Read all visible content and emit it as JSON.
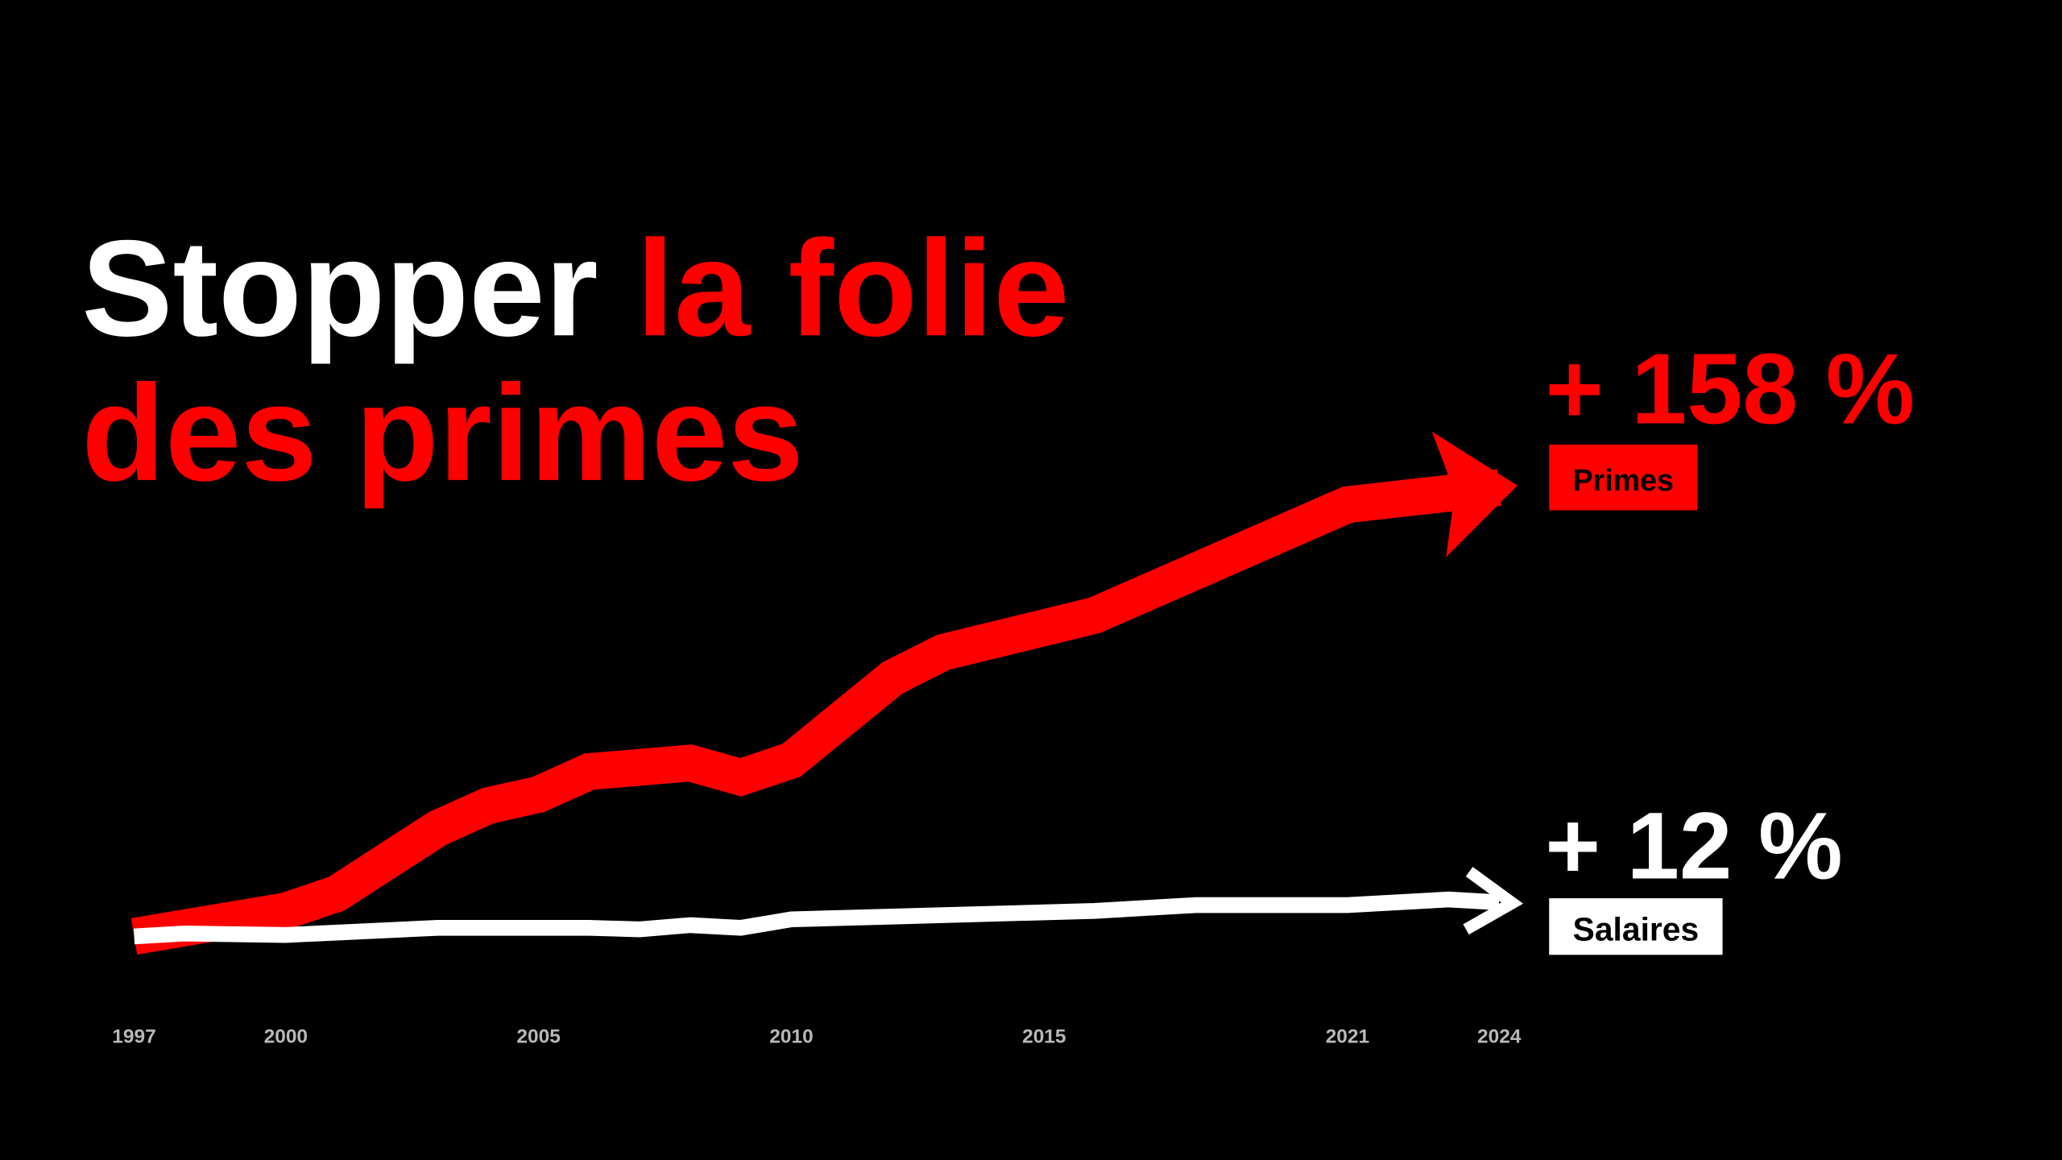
{
  "chart_data": {
    "type": "line",
    "title": [
      "Stopper",
      "la folie",
      "des primes"
    ],
    "title_colors": [
      "#ffffff",
      "#ff0000",
      "#ff0000"
    ],
    "xlim": [
      1997,
      2024
    ],
    "xticks": [
      1997,
      2000,
      2005,
      2010,
      2015,
      2021,
      2024
    ],
    "ylim": [
      -5,
      165
    ],
    "series": [
      {
        "name": "Primes",
        "color": "#ff0000",
        "x": [
          1997,
          1998,
          2000,
          2001,
          2003,
          2004,
          2005,
          2006,
          2008,
          2009,
          2010,
          2012,
          2013,
          2016,
          2021,
          2024
        ],
        "values": [
          0,
          3,
          9,
          15,
          38,
          46,
          50,
          58,
          61,
          56,
          62,
          91,
          100,
          113,
          152,
          158
        ],
        "value_labels": [
          null,
          null,
          null,
          null,
          null,
          null,
          null,
          null,
          null,
          null,
          null,
          null,
          null,
          null,
          null,
          "+ 158 %"
        ]
      },
      {
        "name": "Salaires",
        "color": "#ffffff",
        "x": [
          1997,
          1998,
          2000,
          2003,
          2006,
          2007,
          2008,
          2009,
          2010,
          2012,
          2016,
          2018,
          2021,
          2023,
          2024
        ],
        "values": [
          0,
          1,
          0.5,
          3,
          3,
          2.5,
          4,
          3,
          6,
          7,
          9,
          11,
          11,
          13,
          12
        ],
        "value_labels": [
          null,
          null,
          null,
          null,
          null,
          null,
          null,
          null,
          null,
          null,
          null,
          null,
          null,
          null,
          "+ 12 %"
        ]
      }
    ]
  }
}
